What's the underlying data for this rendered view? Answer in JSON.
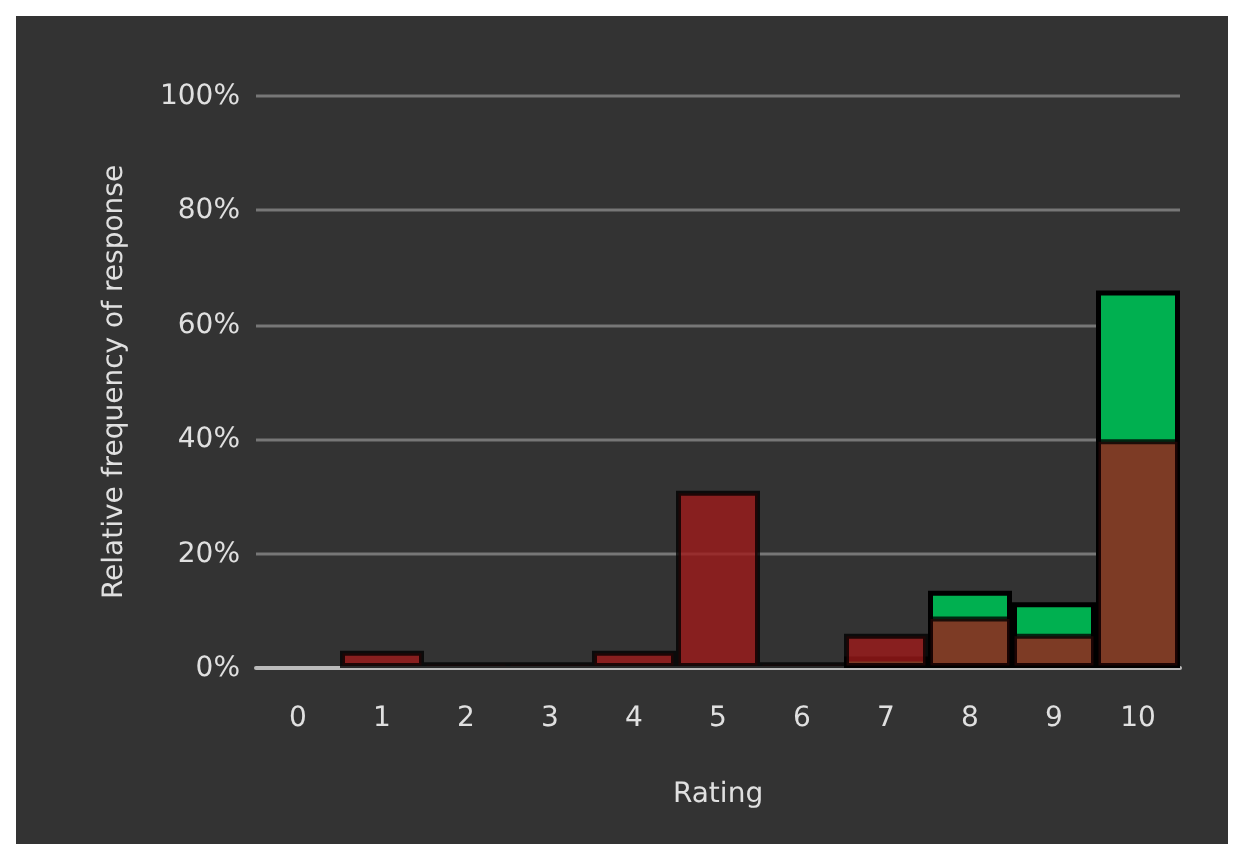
{
  "chart_data": {
    "type": "bar",
    "xlabel": "Rating",
    "ylabel": "Relative frequency of response",
    "categories": [
      "0",
      "1",
      "2",
      "3",
      "4",
      "5",
      "6",
      "7",
      "8",
      "9",
      "10"
    ],
    "series": [
      {
        "color": "#00b050",
        "values": [
          null,
          null,
          null,
          null,
          null,
          null,
          null,
          2,
          13.5,
          11.5,
          66
        ]
      },
      {
        "color": "#a01a1a",
        "values": [
          null,
          3,
          1,
          1,
          3,
          31,
          1,
          6,
          9,
          6,
          40
        ]
      }
    ],
    "ylim": [
      0,
      100
    ],
    "yticks": [
      {
        "value": 0,
        "label": "0%"
      },
      {
        "value": 20,
        "label": "20%"
      },
      {
        "value": 40,
        "label": "40%"
      },
      {
        "value": 60,
        "label": "60%"
      },
      {
        "value": 80,
        "label": "80%"
      },
      {
        "value": 100,
        "label": "100%"
      }
    ],
    "grid": "y"
  }
}
